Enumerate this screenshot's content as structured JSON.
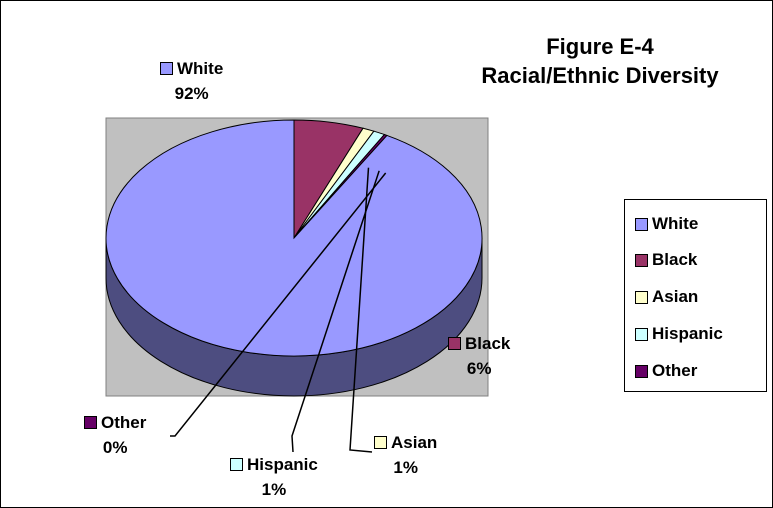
{
  "chart_data": {
    "type": "pie",
    "title": "Figure E-4",
    "subtitle": "Racial/Ethnic Diversity",
    "three_d": true,
    "legend_position": "right",
    "slices": [
      {
        "name": "White",
        "value": 92,
        "label": "92%",
        "color": "#9999ff",
        "side_color": "#4d4d80"
      },
      {
        "name": "Black",
        "value": 6,
        "label": "6%",
        "color": "#993366",
        "side_color": "#4d1a33"
      },
      {
        "name": "Asian",
        "value": 1,
        "label": "1%",
        "color": "#ffffcc",
        "side_color": "#808066"
      },
      {
        "name": "Hispanic",
        "value": 1,
        "label": "1%",
        "color": "#ccffff",
        "side_color": "#668080"
      },
      {
        "name": "Other",
        "value": 0,
        "label": "0%",
        "color": "#660066",
        "side_color": "#330033"
      }
    ]
  },
  "colors": {
    "plot_area": "#c0c0c0",
    "plot_border": "#808080"
  }
}
